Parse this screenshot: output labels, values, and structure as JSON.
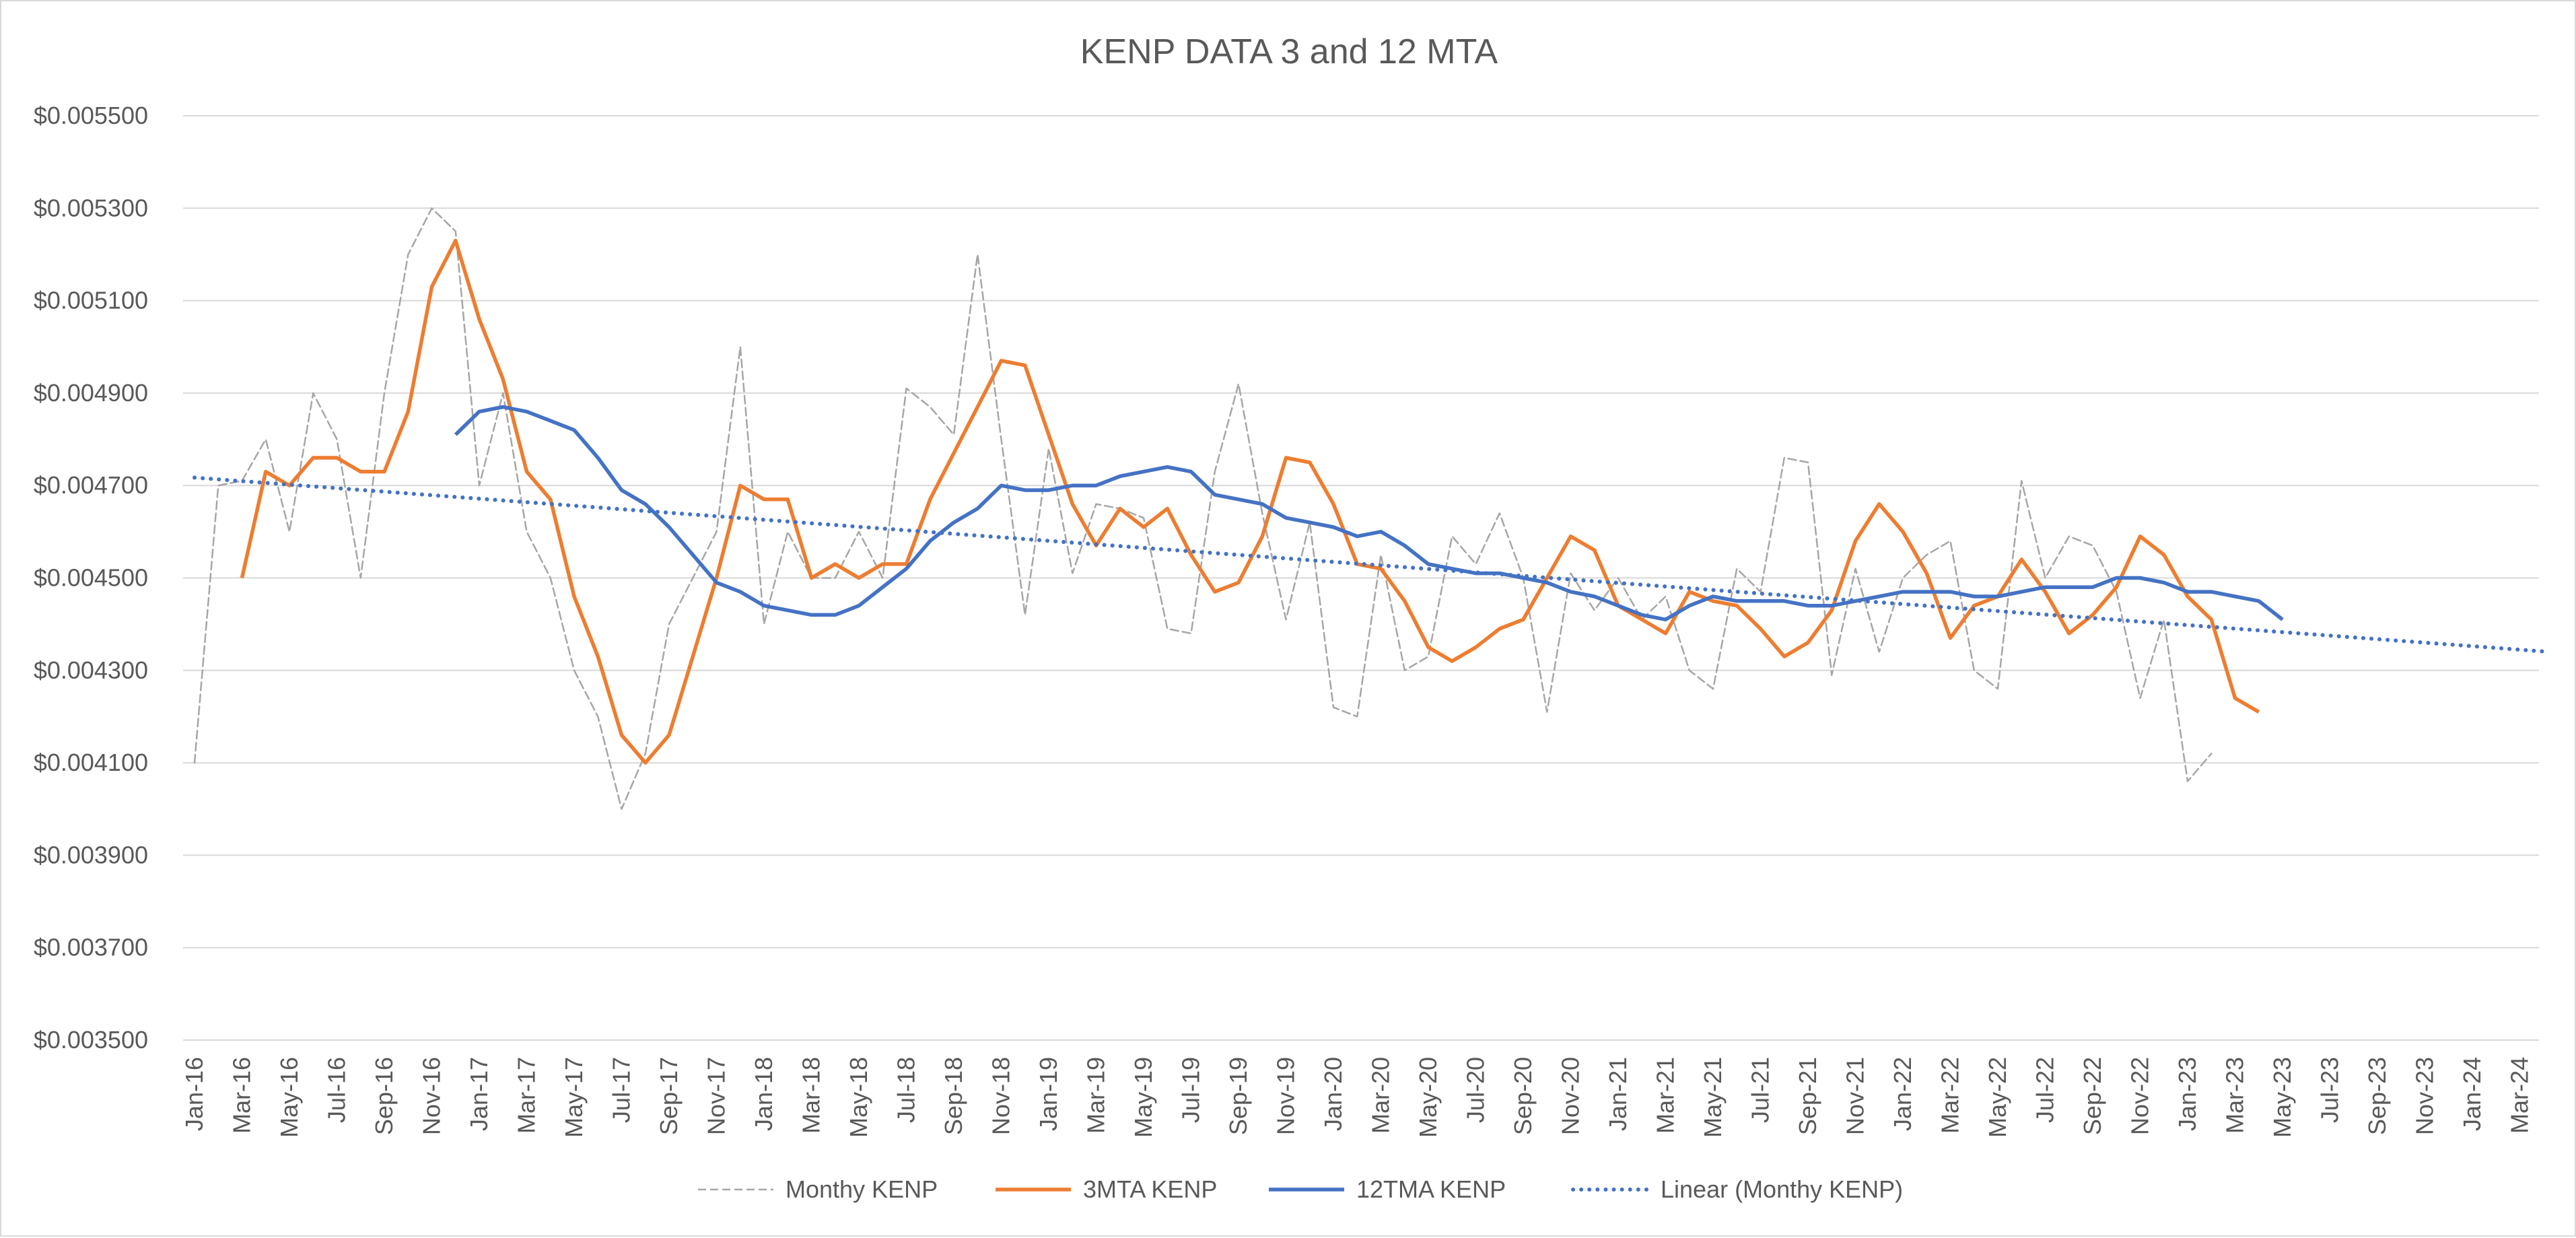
{
  "chart_data": {
    "type": "line",
    "title": "KENP DATA 3 and 12 MTA",
    "xlabel": "",
    "ylabel": "",
    "ylim": [
      0.0035,
      0.0055
    ],
    "y_ticks": [
      "$0.003500",
      "$0.003700",
      "$0.003900",
      "$0.004100",
      "$0.004300",
      "$0.004500",
      "$0.004700",
      "$0.004900",
      "$0.005100",
      "$0.005300",
      "$0.005500"
    ],
    "x_tick_labels": [
      "Jan-16",
      "Mar-16",
      "May-16",
      "Jul-16",
      "Sep-16",
      "Nov-16",
      "Jan-17",
      "Mar-17",
      "May-17",
      "Jul-17",
      "Sep-17",
      "Nov-17",
      "Jan-18",
      "Mar-18",
      "May-18",
      "Jul-18",
      "Sep-18",
      "Nov-18",
      "Jan-19",
      "Mar-19",
      "May-19",
      "Jul-19",
      "Sep-19",
      "Nov-19",
      "Jan-20",
      "Mar-20",
      "May-20",
      "Jul-20",
      "Sep-20",
      "Nov-20",
      "Jan-21",
      "Mar-21",
      "May-21",
      "Jul-21",
      "Sep-21",
      "Nov-21",
      "Jan-22",
      "Mar-22",
      "May-22",
      "Jul-22",
      "Sep-22",
      "Nov-22",
      "Jan-23",
      "Mar-23",
      "May-23",
      "Jul-23",
      "Sep-23",
      "Nov-23",
      "Jan-24",
      "Mar-24"
    ],
    "x_start": "Jan-16",
    "x_months_total": 100,
    "grid": true,
    "legend_position": "bottom",
    "series": [
      {
        "name": "Monthy KENP",
        "color": "#a6a6a6",
        "style": "dashed",
        "start_month_index": 0,
        "values": [
          0.0041,
          0.0047,
          0.00471,
          0.0048,
          0.0046,
          0.0049,
          0.0048,
          0.0045,
          0.0049,
          0.0052,
          0.0053,
          0.00525,
          0.0047,
          0.0049,
          0.0046,
          0.0045,
          0.0043,
          0.0042,
          0.004,
          0.00412,
          0.0044,
          0.0045,
          0.0046,
          0.005,
          0.0044,
          0.0046,
          0.0045,
          0.0045,
          0.0046,
          0.0045,
          0.00491,
          0.00487,
          0.00481,
          0.0052,
          0.0048,
          0.00442,
          0.00478,
          0.00451,
          0.00466,
          0.00465,
          0.00463,
          0.00439,
          0.00438,
          0.00473,
          0.00492,
          0.00464,
          0.00441,
          0.00462,
          0.00422,
          0.0042,
          0.00455,
          0.0043,
          0.00433,
          0.00459,
          0.00453,
          0.00464,
          0.0045,
          0.00421,
          0.00451,
          0.00443,
          0.0045,
          0.00441,
          0.00446,
          0.0043,
          0.00426,
          0.00452,
          0.00447,
          0.00476,
          0.00475,
          0.00429,
          0.00452,
          0.00434,
          0.0045,
          0.00455,
          0.00458,
          0.0043,
          0.00426,
          0.00471,
          0.0045,
          0.00459,
          0.00457,
          0.00447,
          0.00424,
          0.00441,
          0.00406,
          0.00412
        ]
      },
      {
        "name": "3MTA KENP",
        "color": "#ed7d31",
        "style": "solid",
        "start_month_index": 2,
        "values": [
          0.0045,
          0.00473,
          0.0047,
          0.00476,
          0.00476,
          0.00473,
          0.00473,
          0.00486,
          0.00513,
          0.00523,
          0.00506,
          0.00493,
          0.00473,
          0.00467,
          0.00446,
          0.00433,
          0.00416,
          0.0041,
          0.00416,
          0.00433,
          0.0045,
          0.0047,
          0.00467,
          0.00467,
          0.0045,
          0.00453,
          0.0045,
          0.00453,
          0.00453,
          0.00467,
          0.00477,
          0.00487,
          0.00497,
          0.00496,
          0.00481,
          0.00466,
          0.00457,
          0.00465,
          0.00461,
          0.00465,
          0.00455,
          0.00447,
          0.00449,
          0.00459,
          0.00476,
          0.00475,
          0.00466,
          0.00453,
          0.00452,
          0.00445,
          0.00435,
          0.00432,
          0.00435,
          0.00439,
          0.00441,
          0.0045,
          0.00459,
          0.00456,
          0.00444,
          0.00441,
          0.00438,
          0.00447,
          0.00445,
          0.00444,
          0.00439,
          0.00433,
          0.00436,
          0.00443,
          0.00458,
          0.00466,
          0.0046,
          0.00451,
          0.00437,
          0.00444,
          0.00446,
          0.00454,
          0.00447,
          0.00438,
          0.00442,
          0.00448,
          0.00459,
          0.00455,
          0.00446,
          0.00441,
          0.00424,
          0.00421
        ]
      },
      {
        "name": "12TMA KENP",
        "color": "#4472c4",
        "style": "solid",
        "start_month_index": 11,
        "values": [
          0.00481,
          0.00486,
          0.00487,
          0.00486,
          0.00484,
          0.00482,
          0.00476,
          0.00469,
          0.00466,
          0.00461,
          0.00455,
          0.00449,
          0.00447,
          0.00444,
          0.00443,
          0.00442,
          0.00442,
          0.00444,
          0.00448,
          0.00452,
          0.00458,
          0.00462,
          0.00465,
          0.0047,
          0.00469,
          0.00469,
          0.0047,
          0.0047,
          0.00472,
          0.00473,
          0.00474,
          0.00473,
          0.00468,
          0.00467,
          0.00466,
          0.00463,
          0.00462,
          0.00461,
          0.00459,
          0.0046,
          0.00457,
          0.00453,
          0.00452,
          0.00451,
          0.00451,
          0.0045,
          0.00449,
          0.00447,
          0.00446,
          0.00444,
          0.00442,
          0.00441,
          0.00444,
          0.00446,
          0.00445,
          0.00445,
          0.00445,
          0.00444,
          0.00444,
          0.00445,
          0.00446,
          0.00447,
          0.00447,
          0.00447,
          0.00446,
          0.00446,
          0.00447,
          0.00448,
          0.00448,
          0.00448,
          0.0045,
          0.0045,
          0.00449,
          0.00447,
          0.00447,
          0.00446,
          0.00445,
          0.00441
        ]
      },
      {
        "name": "Linear (Monthy KENP)",
        "color": "#4472c4",
        "style": "dotted",
        "start_month_index": 0,
        "end_month_index": 99,
        "trend_start": 0.004717,
        "trend_end": 0.004341
      }
    ]
  }
}
